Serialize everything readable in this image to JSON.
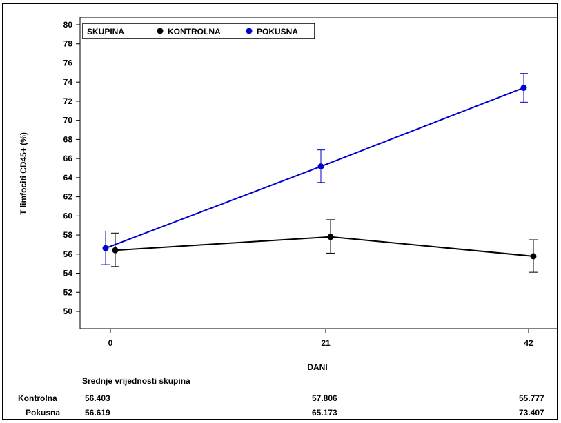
{
  "chart_data": {
    "type": "line",
    "xlabel": "DANI",
    "ylabel": "T limfociti CD45+ (%)",
    "x": [
      0,
      21,
      42
    ],
    "ylim": [
      50,
      80
    ],
    "yticks": [
      50,
      52,
      54,
      56,
      58,
      60,
      62,
      64,
      66,
      68,
      70,
      72,
      74,
      76,
      78,
      80
    ],
    "grid": false,
    "legend": {
      "position": "top-left",
      "title": "SKUPINA"
    },
    "series": [
      {
        "name": "KONTROLNA",
        "color": "#000000",
        "values": [
          56.403,
          57.806,
          55.777
        ],
        "err_low": [
          54.7,
          56.1,
          54.1
        ],
        "err_high": [
          58.2,
          59.6,
          57.5
        ]
      },
      {
        "name": "POKUSNA",
        "color": "#0000cc",
        "values": [
          56.619,
          65.173,
          73.407
        ],
        "err_low": [
          54.9,
          63.5,
          71.9
        ],
        "err_high": [
          58.4,
          66.9,
          74.9
        ]
      }
    ],
    "table": {
      "title": "Srednje vrijednosti skupina",
      "rows": [
        {
          "label": "Kontrolna",
          "values": [
            "56.403",
            "57.806",
            "55.777"
          ]
        },
        {
          "label": "Pokusna",
          "values": [
            "56.619",
            "65.173",
            "73.407"
          ]
        }
      ]
    }
  }
}
